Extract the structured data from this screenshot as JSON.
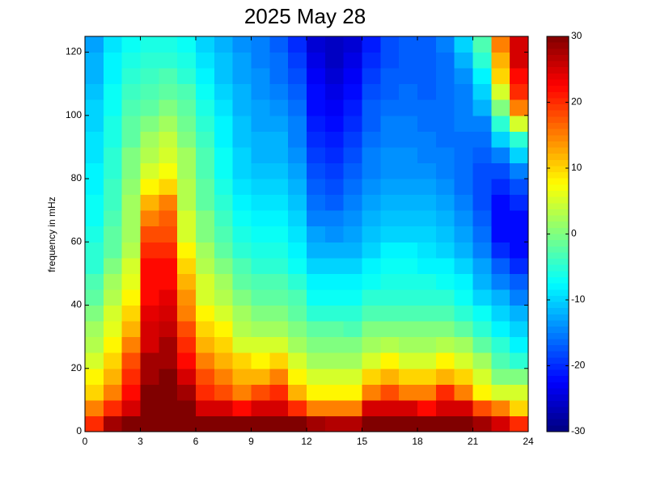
{
  "chart_data": {
    "type": "heatmap",
    "title": "2025 May 28",
    "ylabel": "frequency in mHz",
    "colormap": "jet",
    "clim": [
      -30,
      30
    ],
    "colorbar_ticks": [
      -30,
      -20,
      -10,
      0,
      10,
      20,
      30
    ],
    "xlim": [
      0,
      24
    ],
    "ylim": [
      0,
      125
    ],
    "xticks": [
      0,
      3,
      6,
      9,
      12,
      15,
      18,
      21,
      24
    ],
    "yticks": [
      0,
      20,
      40,
      60,
      80,
      100,
      120
    ],
    "xbins": [
      0,
      1,
      2,
      3,
      4,
      5,
      6,
      7,
      8,
      9,
      10,
      11,
      12,
      13,
      14,
      15,
      16,
      17,
      18,
      19,
      20,
      21,
      22,
      23,
      24
    ],
    "ybins": [
      0,
      5,
      10,
      15,
      20,
      25,
      30,
      35,
      40,
      45,
      50,
      55,
      60,
      65,
      70,
      75,
      80,
      85,
      90,
      95,
      100,
      105,
      110,
      115,
      120,
      125
    ],
    "values": [
      [
        20,
        28,
        30,
        30,
        30,
        30,
        30,
        30,
        30,
        30,
        30,
        30,
        28,
        27,
        27,
        30,
        30,
        30,
        30,
        30,
        30,
        28,
        25,
        20
      ],
      [
        15,
        20,
        25,
        30,
        30,
        30,
        25,
        25,
        22,
        25,
        25,
        20,
        15,
        15,
        15,
        25,
        25,
        25,
        22,
        25,
        25,
        18,
        15,
        10
      ],
      [
        10,
        15,
        22,
        30,
        30,
        28,
        20,
        18,
        15,
        18,
        20,
        12,
        8,
        8,
        8,
        15,
        18,
        15,
        15,
        20,
        15,
        8,
        5,
        5
      ],
      [
        8,
        12,
        20,
        28,
        30,
        25,
        18,
        15,
        12,
        12,
        15,
        8,
        5,
        5,
        5,
        10,
        12,
        10,
        10,
        12,
        10,
        5,
        0,
        0
      ],
      [
        5,
        10,
        18,
        28,
        28,
        22,
        15,
        12,
        10,
        8,
        10,
        5,
        2,
        2,
        2,
        5,
        8,
        5,
        5,
        8,
        5,
        2,
        -3,
        -5
      ],
      [
        3,
        8,
        15,
        25,
        28,
        20,
        12,
        10,
        5,
        5,
        5,
        2,
        0,
        0,
        0,
        2,
        3,
        2,
        2,
        3,
        2,
        -2,
        -5,
        -8
      ],
      [
        2,
        6,
        12,
        25,
        26,
        18,
        10,
        8,
        3,
        2,
        2,
        0,
        -2,
        -2,
        -3,
        0,
        0,
        0,
        0,
        0,
        -2,
        -5,
        -8,
        -10
      ],
      [
        0,
        5,
        10,
        24,
        25,
        15,
        8,
        5,
        2,
        0,
        0,
        -2,
        -5,
        -5,
        -5,
        -3,
        -3,
        -3,
        -3,
        -3,
        -5,
        -7,
        -10,
        -12
      ],
      [
        -2,
        3,
        8,
        22,
        24,
        14,
        5,
        3,
        0,
        -2,
        -2,
        -3,
        -7,
        -7,
        -7,
        -5,
        -5,
        -5,
        -5,
        -5,
        -7,
        -10,
        -12,
        -15
      ],
      [
        -3,
        2,
        6,
        22,
        22,
        12,
        5,
        2,
        -2,
        -3,
        -3,
        -5,
        -8,
        -8,
        -8,
        -7,
        -6,
        -6,
        -6,
        -7,
        -8,
        -12,
        -15,
        -17
      ],
      [
        -5,
        0,
        5,
        22,
        22,
        10,
        3,
        0,
        -3,
        -5,
        -5,
        -7,
        -10,
        -10,
        -10,
        -8,
        -7,
        -7,
        -8,
        -8,
        -10,
        -13,
        -17,
        -20
      ],
      [
        -5,
        -2,
        3,
        20,
        20,
        8,
        2,
        -2,
        -5,
        -6,
        -6,
        -8,
        -12,
        -12,
        -12,
        -10,
        -8,
        -8,
        -9,
        -10,
        -12,
        -15,
        -20,
        -22
      ],
      [
        -6,
        -2,
        2,
        18,
        18,
        5,
        0,
        -3,
        -6,
        -7,
        -7,
        -9,
        -13,
        -14,
        -13,
        -11,
        -10,
        -10,
        -10,
        -11,
        -13,
        -16,
        -22,
        -22
      ],
      [
        -7,
        -3,
        2,
        15,
        17,
        5,
        0,
        -4,
        -7,
        -8,
        -8,
        -10,
        -15,
        -15,
        -14,
        -12,
        -11,
        -11,
        -11,
        -12,
        -14,
        -17,
        -22,
        -22
      ],
      [
        -7,
        -4,
        2,
        12,
        15,
        3,
        -2,
        -5,
        -8,
        -9,
        -9,
        -11,
        -16,
        -17,
        -15,
        -13,
        -12,
        -12,
        -12,
        -13,
        -15,
        -18,
        -22,
        -20
      ],
      [
        -8,
        -4,
        1,
        8,
        10,
        3,
        -2,
        -6,
        -9,
        -10,
        -10,
        -12,
        -17,
        -18,
        -16,
        -14,
        -13,
        -13,
        -13,
        -14,
        -16,
        -18,
        -20,
        -18
      ],
      [
        -8,
        -5,
        0,
        5,
        7,
        2,
        -3,
        -7,
        -10,
        -11,
        -11,
        -13,
        -18,
        -19,
        -17,
        -15,
        -14,
        -14,
        -14,
        -15,
        -16,
        -18,
        -18,
        -15
      ],
      [
        -9,
        -5,
        0,
        3,
        5,
        2,
        -3,
        -7,
        -10,
        -12,
        -12,
        -14,
        -19,
        -20,
        -18,
        -15,
        -14,
        -14,
        -15,
        -15,
        -16,
        -17,
        -15,
        -10
      ],
      [
        -9,
        -6,
        -2,
        2,
        4,
        0,
        -4,
        -8,
        -11,
        -12,
        -12,
        -15,
        -20,
        -21,
        -19,
        -16,
        -15,
        -15,
        -15,
        -16,
        -16,
        -16,
        -10,
        -5
      ],
      [
        -10,
        -6,
        -2,
        0,
        2,
        -1,
        -5,
        -8,
        -11,
        -13,
        -13,
        -15,
        -21,
        -22,
        -20,
        -17,
        -15,
        -15,
        -16,
        -16,
        -15,
        -15,
        -5,
        5
      ],
      [
        -10,
        -7,
        -3,
        -2,
        0,
        -2,
        -6,
        -9,
        -12,
        -13,
        -14,
        -16,
        -22,
        -23,
        -21,
        -17,
        -16,
        -16,
        -16,
        -16,
        -15,
        -12,
        0,
        15
      ],
      [
        -11,
        -7,
        -4,
        -3,
        -2,
        -3,
        -7,
        -10,
        -12,
        -14,
        -15,
        -17,
        -22,
        -24,
        -22,
        -18,
        -17,
        -16,
        -17,
        -16,
        -15,
        -10,
        5,
        20
      ],
      [
        -12,
        -8,
        -5,
        -4,
        -3,
        -5,
        -8,
        -11,
        -13,
        -14,
        -16,
        -18,
        -23,
        -25,
        -23,
        -19,
        -17,
        -17,
        -17,
        -16,
        -14,
        -8,
        10,
        22
      ],
      [
        -12,
        -8,
        -6,
        -5,
        -5,
        -6,
        -9,
        -11,
        -13,
        -15,
        -16,
        -19,
        -24,
        -26,
        -24,
        -20,
        -18,
        -17,
        -17,
        -16,
        -12,
        -5,
        12,
        25
      ],
      [
        -13,
        -9,
        -7,
        -6,
        -6,
        -7,
        -10,
        -12,
        -14,
        -15,
        -17,
        -20,
        -25,
        -26,
        -25,
        -21,
        -18,
        -17,
        -17,
        -15,
        -10,
        -3,
        15,
        25
      ]
    ]
  }
}
